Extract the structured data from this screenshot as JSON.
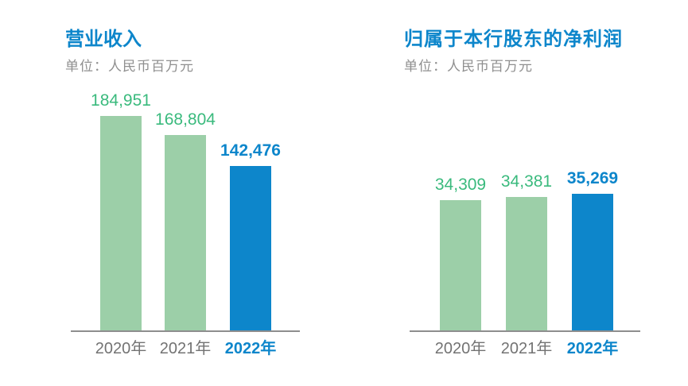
{
  "page": {
    "background": "#ffffff"
  },
  "colors": {
    "accent_blue": "#0d86cb",
    "bar_green": "#9ccfa8",
    "value_green": "#3aba7d",
    "subtitle_gray": "#8f8f8f",
    "year_gray": "#737373",
    "axis_gray": "#8e8e8e"
  },
  "chart_data": [
    {
      "type": "bar",
      "title": "营业收入",
      "unit_label": "单位：人民币百万元",
      "categories": [
        "2020年",
        "2021年",
        "2022年"
      ],
      "values": [
        184951,
        168804,
        142476
      ],
      "value_labels": [
        "184,951",
        "168,804",
        "142,476"
      ],
      "highlight_index": 2,
      "ylim": [
        0,
        185000
      ],
      "grid": false,
      "legend": false
    },
    {
      "type": "bar",
      "title": "归属于本行股东的净利润",
      "unit_label": "单位：人民币百万元",
      "categories": [
        "2020年",
        "2021年",
        "2022年"
      ],
      "values": [
        34309,
        34381,
        35269
      ],
      "value_labels": [
        "34,309",
        "34,381",
        "35,269"
      ],
      "highlight_index": 2,
      "ylim": [
        0,
        36000
      ],
      "grid": false,
      "legend": false
    }
  ]
}
